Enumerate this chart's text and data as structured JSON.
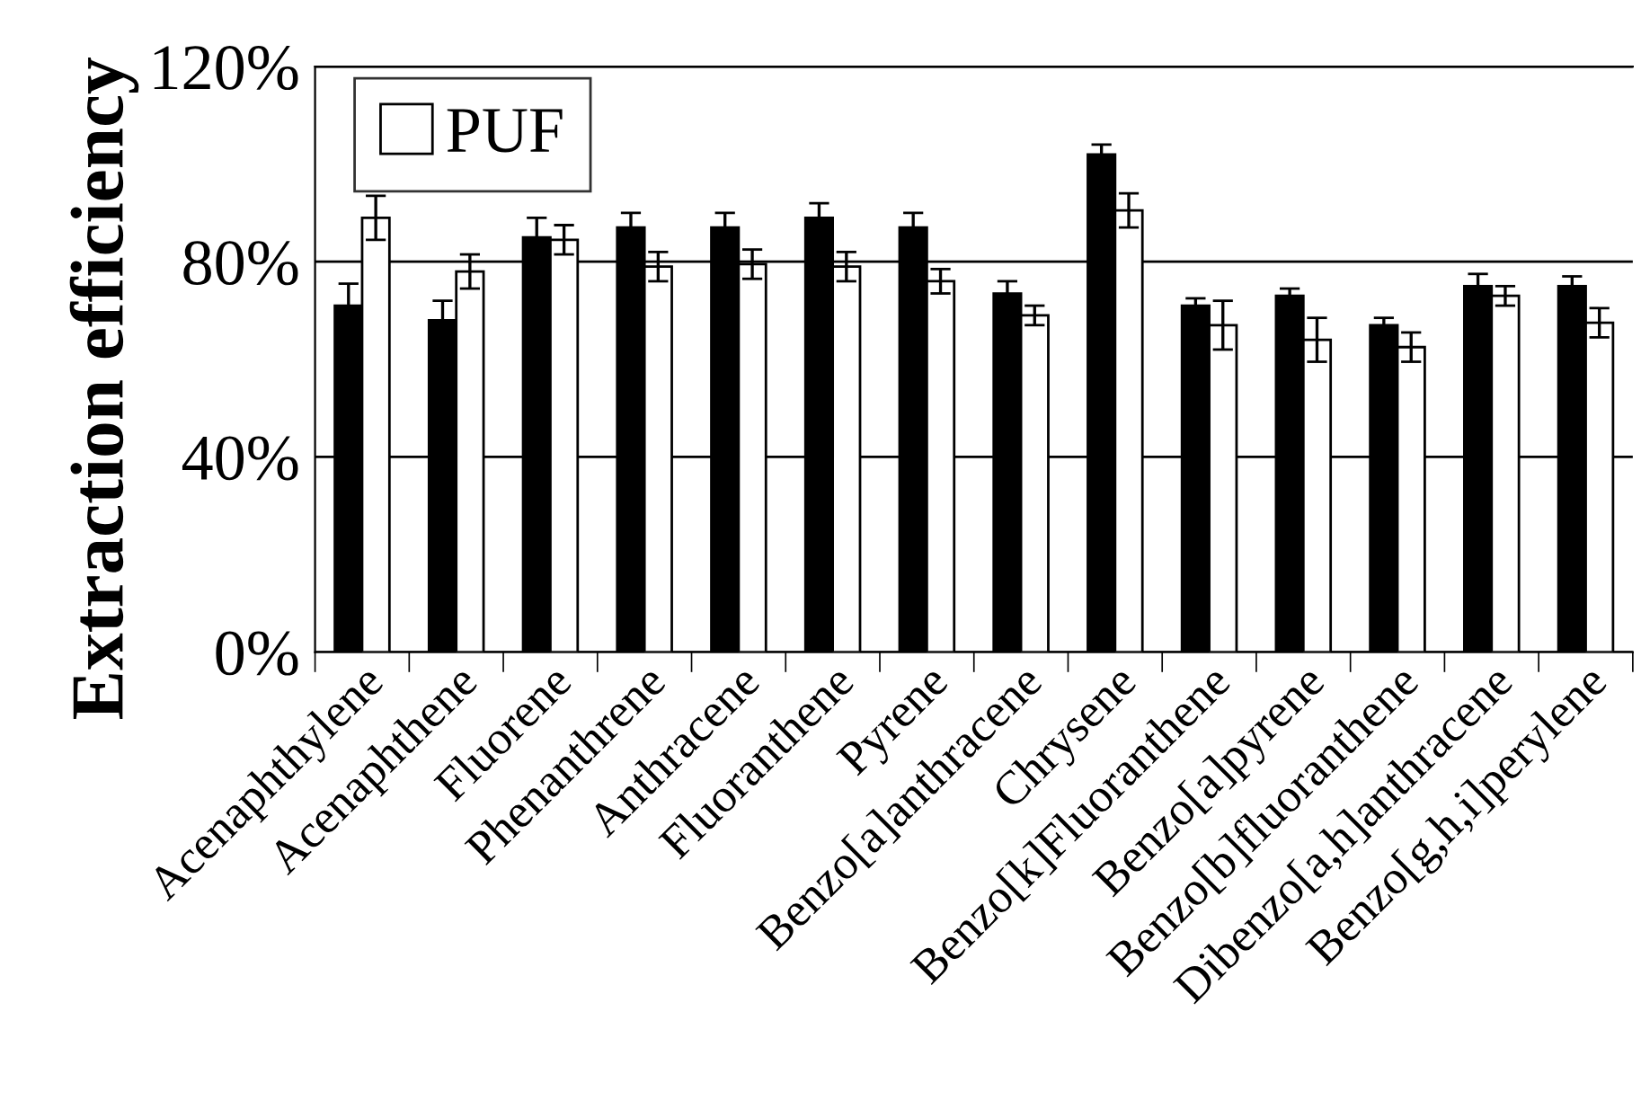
{
  "chart_data": {
    "type": "bar",
    "ylabel": "Extraction efficiency",
    "categories": [
      "Acenaphthylene",
      "Acenaphthene",
      "Fluorene",
      "Phenanthrene",
      "Anthracene",
      "Fluoranthene",
      "Pyrene",
      "Benzo[a]anthracene",
      "Chrysene",
      "Benzo[k]Fluoranthene",
      "Benzo[a]pyrene",
      "Benzo[b]fluoranthene",
      "Dibenzo[a,h]anthracene",
      "Benzo[g,h,i]perylene"
    ],
    "series": [
      {
        "color": "#000000",
        "values": [
          71,
          68,
          85,
          87,
          87,
          89,
          87,
          73.5,
          102,
          71,
          73,
          67,
          75,
          75
        ],
        "errors": [
          4.5,
          4,
          4,
          3,
          3,
          3,
          3,
          2.5,
          2,
          1.5,
          1.5,
          1.5,
          2.5,
          2
        ]
      },
      {
        "name": "PUF",
        "color": "#ffffff",
        "values": [
          89,
          78,
          84.5,
          79,
          79.5,
          79,
          76,
          69,
          90.5,
          67,
          64,
          62.5,
          73,
          67.5
        ],
        "errors": [
          4.5,
          3.5,
          3,
          3,
          3,
          3,
          2.5,
          2,
          3.5,
          5,
          4.5,
          3,
          2,
          3
        ]
      }
    ],
    "ylim": [
      0,
      120
    ],
    "yticks": [
      {
        "value": 0,
        "label": "0%"
      },
      {
        "value": 40,
        "label": "40%"
      },
      {
        "value": 80,
        "label": "80%"
      },
      {
        "value": 120,
        "label": "120%"
      }
    ],
    "grid": "y",
    "legend": "top left"
  }
}
